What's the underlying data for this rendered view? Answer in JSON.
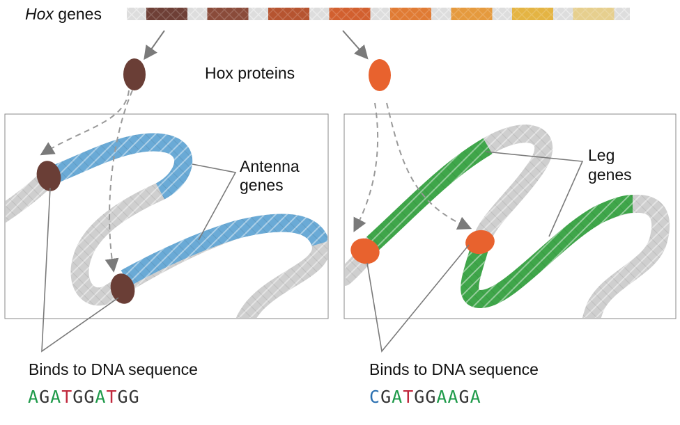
{
  "labels": {
    "hox": "Hox",
    "genes": " genes",
    "hox_proteins": "Hox proteins",
    "antenna_genes_1": "Antenna",
    "antenna_genes_2": "genes",
    "leg_genes_1": "Leg",
    "leg_genes_2": "genes",
    "binds_left": "Binds to DNA sequence",
    "binds_right": "Binds to DNA sequence"
  },
  "sequences": {
    "left": "AGATGGATGG",
    "right": "CGATGGAAGA"
  },
  "colors": {
    "A": "#1f9a4a",
    "T": "#c0283c",
    "G": "#333333",
    "C": "#2a6fb0",
    "antenna_gene": "#6aaad6",
    "leg_gene": "#3fa64a",
    "dna_gray": "#cfcfcf",
    "protein_brown": "#6a3e36",
    "protein_orange": "#e8622e"
  },
  "hox_gene_colors": [
    "#6e3f36",
    "#8a4b3a",
    "#b65430",
    "#d2602f",
    "#e07b34",
    "#e59a3e",
    "#e4b443",
    "#e6cf8e"
  ]
}
